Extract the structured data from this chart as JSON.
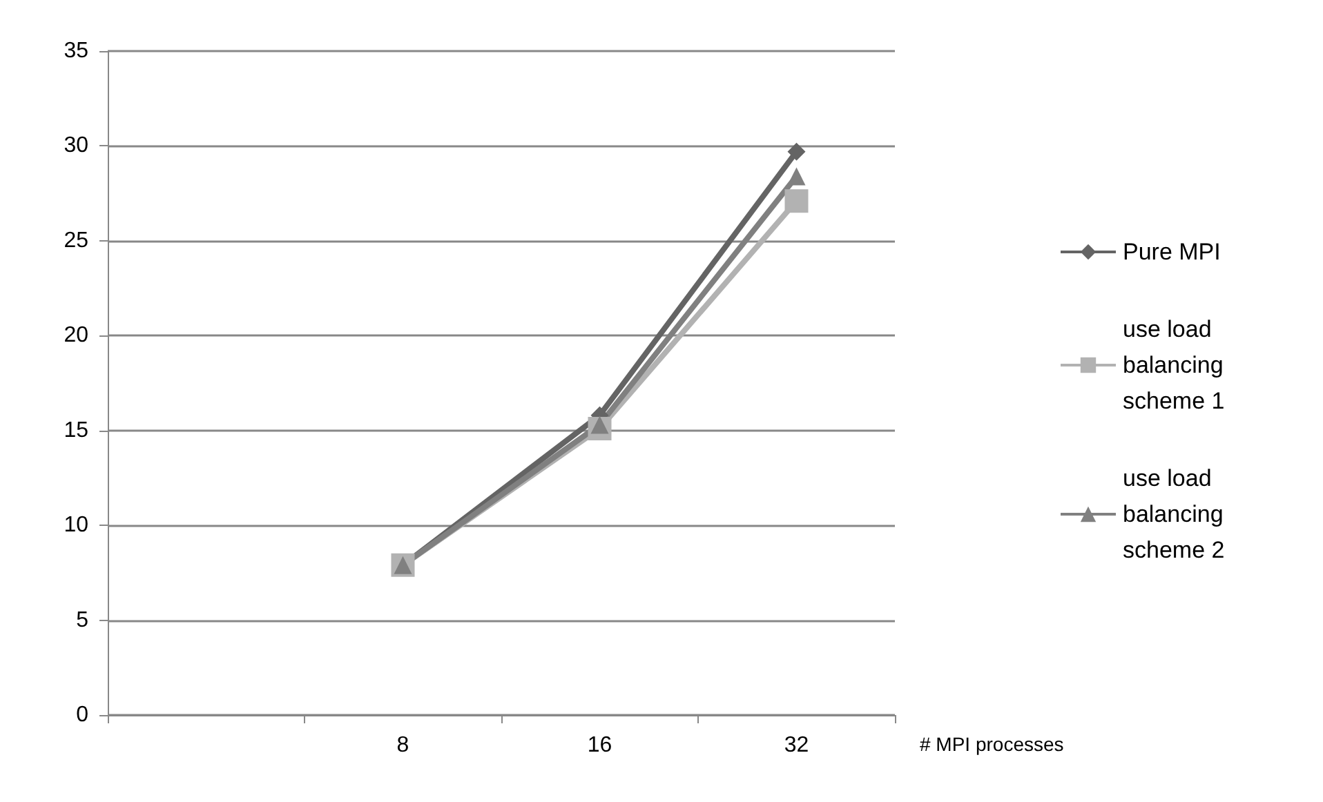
{
  "chart_data": {
    "type": "line",
    "xlabel": "# MPI processes",
    "categories": [
      null,
      "8",
      "16",
      "32"
    ],
    "series": [
      {
        "name": "Pure MPI",
        "color": "#646464",
        "marker": "diamond",
        "values": [
          null,
          7.9,
          15.8,
          29.7
        ]
      },
      {
        "name": "use load balancing scheme 1",
        "color": "#b2b2b2",
        "marker": "square",
        "values": [
          null,
          7.9,
          15.1,
          27.1
        ]
      },
      {
        "name": "use load balancing scheme 2",
        "color": "#808080",
        "marker": "triangle",
        "values": [
          null,
          7.9,
          15.3,
          28.4
        ]
      }
    ],
    "ylim": [
      0,
      35
    ],
    "yticks": [
      0,
      5,
      10,
      15,
      20,
      25,
      30,
      35
    ],
    "grid": "y",
    "legend": "right"
  }
}
